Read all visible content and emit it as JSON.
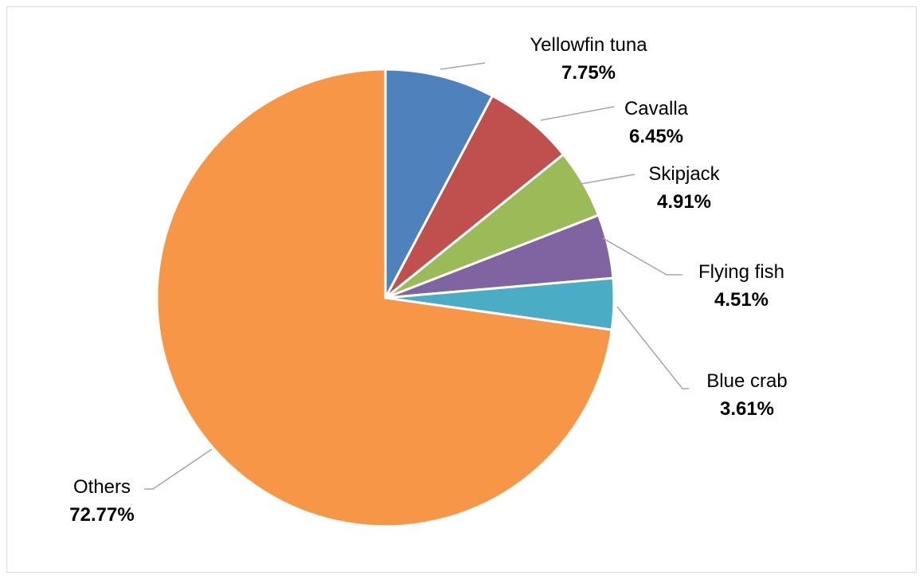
{
  "chart_data": {
    "type": "pie",
    "title": "",
    "categories": [
      "Yellowfin tuna",
      "Cavalla",
      "Skipjack",
      "Flying fish",
      "Blue crab",
      "Others"
    ],
    "values": [
      7.75,
      6.45,
      4.91,
      4.51,
      3.61,
      72.77
    ],
    "value_labels": [
      "7.75%",
      "6.45%",
      "4.91%",
      "4.51%",
      "3.61%",
      "72.77%"
    ],
    "colors": [
      "#4f81bd",
      "#c0504d",
      "#9bbb59",
      "#8064a2",
      "#4bacc6",
      "#f79646"
    ],
    "start_angle": "12 o'clock, clockwise",
    "legend": "none (data labels with leader lines)"
  }
}
